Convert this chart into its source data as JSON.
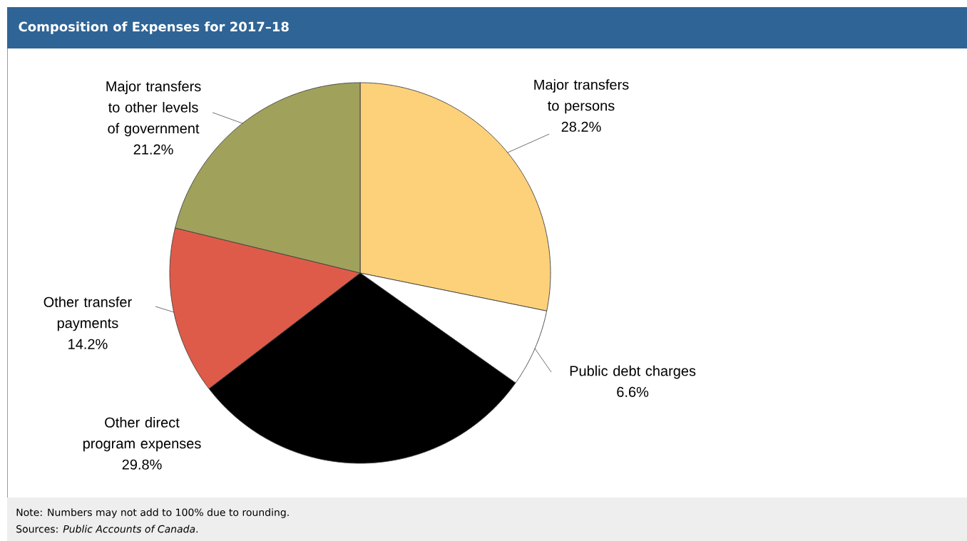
{
  "chart_data": {
    "type": "pie",
    "title": "Composition of Expenses for 2017–18",
    "categories": [
      "Major transfers to persons",
      "Public debt charges",
      "Other direct program expenses",
      "Other transfer payments",
      "Major transfers to other levels of government"
    ],
    "values": [
      28.2,
      6.6,
      29.8,
      14.2,
      21.2
    ],
    "value_labels": [
      "28.2%",
      "6.6%",
      "29.8%",
      "14.2%",
      "21.2%"
    ],
    "colors": [
      "#fdd17a",
      "#ffffff",
      "#000000",
      "#df5b49",
      "#a0a25c"
    ],
    "annotations": [
      "Note: Numbers may not add to 100% due to rounding.",
      "Sources: *Public Accounts of Canada*."
    ]
  }
}
